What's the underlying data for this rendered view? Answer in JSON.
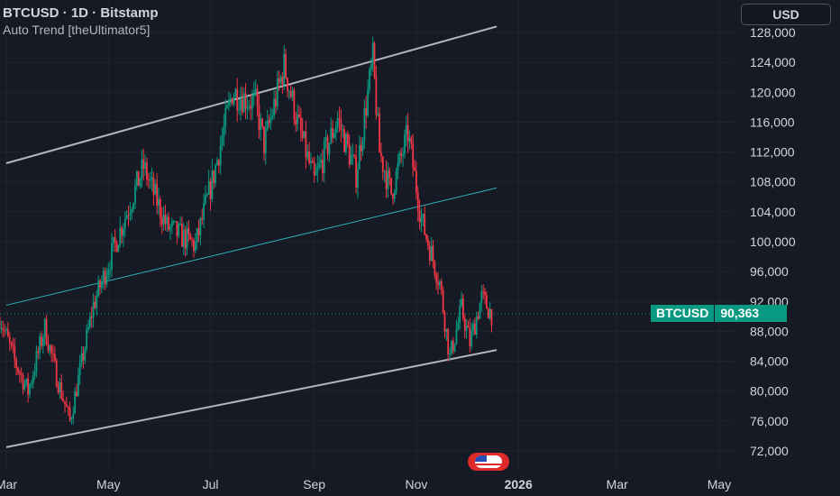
{
  "header": {
    "title": "BTCUSD · 1D · Bitstamp",
    "indicator": "Auto Trend [theUltimator5]"
  },
  "currency_button": "USD",
  "price_label": {
    "symbol": "BTCUSD",
    "value": "90,363"
  },
  "colors": {
    "up": "#089981",
    "down": "#f23645",
    "trend": "#b2b5be",
    "mid": "#2bb3c0",
    "bg": "#161a25"
  },
  "event_icon": "us-flag-icon",
  "chart_data": {
    "type": "candlestick",
    "title": "",
    "ylim": [
      70000,
      131000
    ],
    "y_ticks": [
      72000,
      76000,
      80000,
      84000,
      88000,
      92000,
      96000,
      100000,
      104000,
      108000,
      112000,
      116000,
      120000,
      124000,
      128000
    ],
    "y_tick_labels": [
      "72,000",
      "76,000",
      "80,000",
      "84,000",
      "88,000",
      "92,000",
      "96,000",
      "100,000",
      "104,000",
      "108,000",
      "112,000",
      "116,000",
      "120,000",
      "124,000",
      "128,000"
    ],
    "x_range": [
      "2025-03-01",
      "2026-05-15"
    ],
    "x_ticks": [
      {
        "date": "2025-03-01",
        "label": "Mar"
      },
      {
        "date": "2025-05-01",
        "label": "May"
      },
      {
        "date": "2025-07-01",
        "label": "Jul"
      },
      {
        "date": "2025-09-01",
        "label": "Sep"
      },
      {
        "date": "2025-11-01",
        "label": "Nov"
      },
      {
        "date": "2026-01-01",
        "label": "2026",
        "bold": true
      },
      {
        "date": "2026-03-01",
        "label": "Mar"
      },
      {
        "date": "2026-05-01",
        "label": "May"
      }
    ],
    "last_price": 90363,
    "price_path": [
      [
        "2025-02-25",
        90000
      ],
      [
        "2025-03-06",
        84000
      ],
      [
        "2025-03-14",
        80000
      ],
      [
        "2025-03-24",
        88500
      ],
      [
        "2025-03-31",
        82000
      ],
      [
        "2025-04-08",
        76000
      ],
      [
        "2025-04-22",
        91500
      ],
      [
        "2025-05-08",
        101500
      ],
      [
        "2025-05-22",
        110000
      ],
      [
        "2025-06-05",
        102000
      ],
      [
        "2025-06-22",
        99500
      ],
      [
        "2025-07-03",
        109000
      ],
      [
        "2025-07-14",
        120000
      ],
      [
        "2025-07-28",
        118500
      ],
      [
        "2025-08-02",
        113000
      ],
      [
        "2025-08-14",
        123500
      ],
      [
        "2025-08-22",
        116000
      ],
      [
        "2025-09-01",
        108000
      ],
      [
        "2025-09-15",
        116500
      ],
      [
        "2025-09-26",
        109000
      ],
      [
        "2025-10-06",
        124500
      ],
      [
        "2025-10-10",
        112000
      ],
      [
        "2025-10-17",
        106500
      ],
      [
        "2025-10-27",
        114500
      ],
      [
        "2025-11-04",
        103000
      ],
      [
        "2025-11-15",
        94500
      ],
      [
        "2025-11-21",
        84500
      ],
      [
        "2025-11-28",
        91000
      ],
      [
        "2025-12-03",
        86500
      ],
      [
        "2025-12-10",
        92500
      ],
      [
        "2025-12-16",
        90363
      ]
    ],
    "trend_lines": [
      {
        "name": "upper",
        "from": [
          "2025-03-01",
          110500
        ],
        "to": [
          "2025-12-19",
          128800
        ]
      },
      {
        "name": "middle",
        "from": [
          "2025-03-01",
          91500
        ],
        "to": [
          "2025-12-19",
          107200
        ]
      },
      {
        "name": "lower",
        "from": [
          "2025-03-01",
          72500
        ],
        "to": [
          "2025-12-19",
          85500
        ]
      }
    ],
    "grid": true
  }
}
